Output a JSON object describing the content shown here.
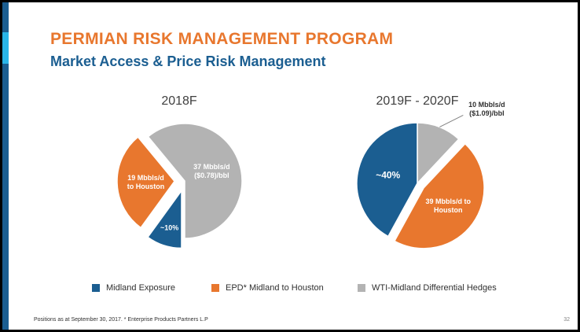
{
  "slide": {
    "title": "PERMIAN RISK MANAGEMENT PROGRAM",
    "subtitle": "Market Access & Price Risk Management",
    "footnote": "Positions as at September 30, 2017. * Enterprise Products Partners L.P",
    "page_number": "32"
  },
  "colors": {
    "midland_exposure": "#1b5e91",
    "epd_midland_houston": "#e8772e",
    "wti_differential_hedges": "#b3b3b3",
    "title": "#e8772e",
    "subtitle": "#1b5e91",
    "bar_light": "#29b5e8"
  },
  "chart_data": [
    {
      "type": "pie",
      "title": "2018F",
      "slices": [
        {
          "category": "Midland Exposure",
          "value": 10,
          "label": "~10%",
          "label_lines": [
            "~10%"
          ],
          "exploded": true
        },
        {
          "category": "EPD* Midland to Houston",
          "value": 29,
          "label": "19 Mbbls/d to Houston",
          "label_lines": [
            "19 Mbbls/d",
            "to Houston"
          ],
          "exploded": true
        },
        {
          "category": "WTI-Midland Differential Hedges",
          "value": 61,
          "label": "37 Mbbls/d ($0.78)/bbl",
          "label_lines": [
            "37 Mbbls/d",
            "($0.78)/bbl"
          ],
          "exploded": false
        }
      ]
    },
    {
      "type": "pie",
      "title": "2019F - 2020F",
      "slices": [
        {
          "category": "WTI-Midland Differential Hedges",
          "value": 12,
          "label": "10 Mbbls/d ($1.09)/bbl",
          "label_lines": [
            "10 Mbbls/d",
            "($1.09)/bbl"
          ],
          "exploded": false,
          "label_outside": true
        },
        {
          "category": "EPD* Midland to Houston",
          "value": 46,
          "label": "39 Mbbls/d to Houston",
          "label_lines": [
            "39 Mbbls/d to",
            "Houston"
          ],
          "exploded": true
        },
        {
          "category": "Midland Exposure",
          "value": 42,
          "label": "~40%",
          "label_lines": [
            "~40%"
          ],
          "exploded": false
        }
      ]
    }
  ],
  "legend": [
    {
      "label": "Midland Exposure",
      "color": "#1b5e91"
    },
    {
      "label": "EPD* Midland to Houston",
      "color": "#e8772e"
    },
    {
      "label": "WTI-Midland Differential Hedges",
      "color": "#b3b3b3"
    }
  ]
}
